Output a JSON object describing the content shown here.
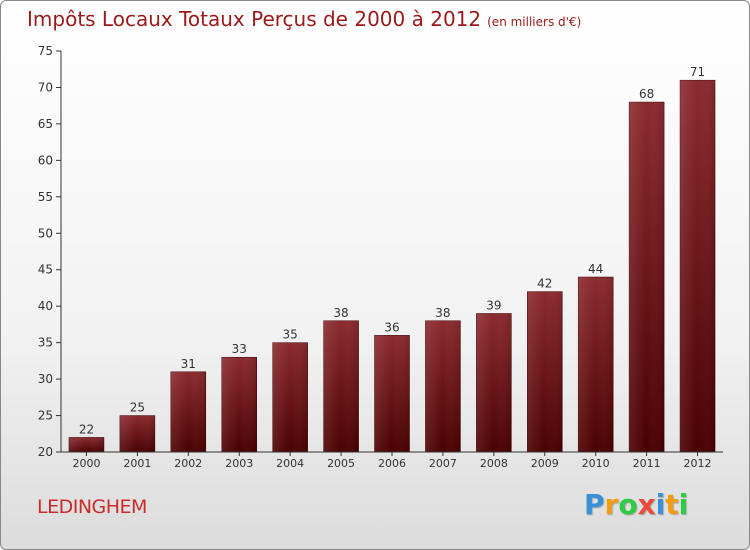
{
  "header": {
    "title": "Impôts Locaux Totaux Perçus de 2000 à 2012",
    "subtitle": "(en milliers d'€)"
  },
  "commune": "LEDINGHEM",
  "logo": {
    "letters": [
      "P",
      "r",
      "o",
      "x",
      "i",
      "t",
      "i"
    ],
    "colors": [
      "#3a8fd9",
      "#f39c12",
      "#2ecc40",
      "#e74c3c",
      "#3a8fd9",
      "#f39c12",
      "#2ecc40"
    ]
  },
  "colors": {
    "bar_top": "#8b2a2e",
    "bar_bottom": "#4a0000",
    "title": "#9a1a1a",
    "commune": "#cc2a2a"
  },
  "chart_data": {
    "type": "bar",
    "categories": [
      "2000",
      "2001",
      "2002",
      "2003",
      "2004",
      "2005",
      "2006",
      "2007",
      "2008",
      "2009",
      "2010",
      "2011",
      "2012"
    ],
    "values": [
      22,
      25,
      31,
      33,
      35,
      38,
      36,
      38,
      39,
      42,
      44,
      68,
      71
    ],
    "yticks": [
      20,
      25,
      30,
      35,
      40,
      45,
      50,
      55,
      60,
      65,
      70,
      75
    ],
    "ylim": [
      20,
      75
    ],
    "grid": false,
    "title": "Impôts Locaux Totaux Perçus de 2000 à 2012",
    "subtitle": "(en milliers d'€)"
  }
}
